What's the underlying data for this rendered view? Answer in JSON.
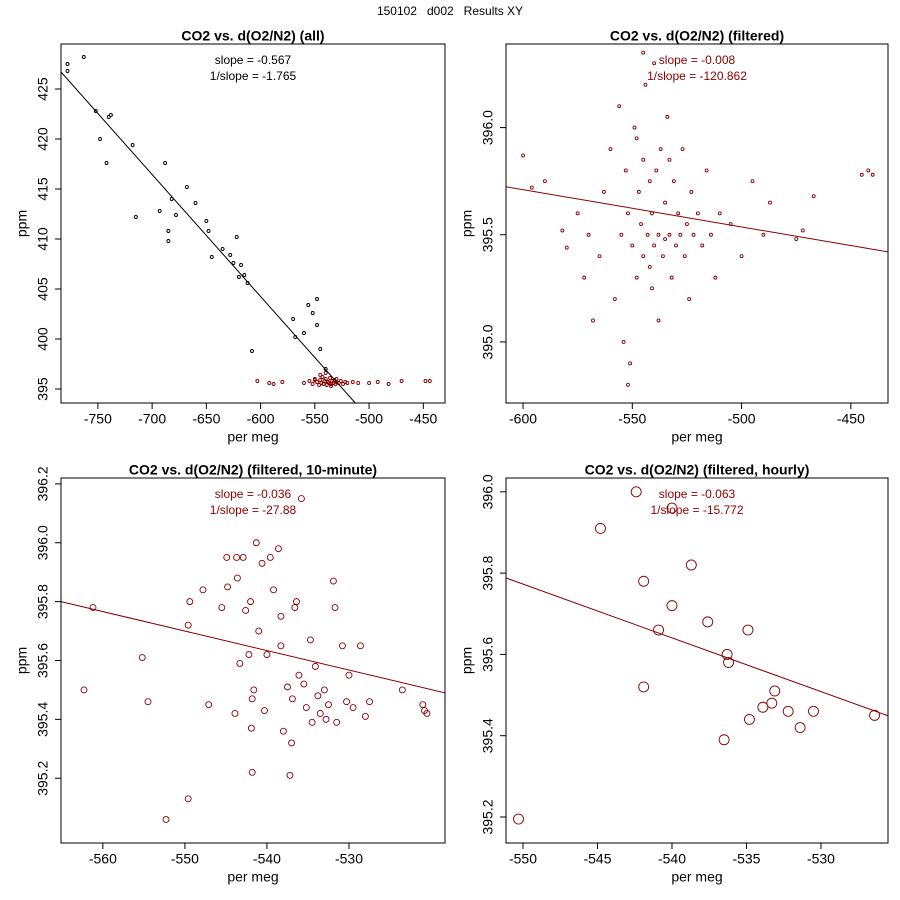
{
  "title": "150102   d002   Results XY",
  "chart_data": [
    {
      "type": "scatter",
      "title": "CO2 vs. d(O2/N2) (all)",
      "x_label": "per meg",
      "y_label": "ppm",
      "xlim": [
        -784,
        -430
      ],
      "ylim": [
        393.6,
        429.5
      ],
      "xticks": [
        -750,
        -700,
        -650,
        -600,
        -550,
        -500,
        -450
      ],
      "yticks": [
        395,
        400,
        405,
        410,
        415,
        420,
        425
      ],
      "annotations": [
        "slope = -0.567",
        "1/slope = -1.765"
      ],
      "annotation_color": "#000000",
      "fit_line": {
        "color": "#000000",
        "x": [
          -784,
          -512.7
        ],
        "values": [
          426.7,
          393.6
        ]
      },
      "series": [
        {
          "color": "#000000",
          "x": [
            -778,
            -778,
            -763,
            -752,
            -748,
            -742,
            -740,
            -738,
            -718,
            -715,
            -693,
            -688,
            -685,
            -685,
            -682,
            -678,
            -668,
            -660,
            -650,
            -648,
            -645,
            -635,
            -628,
            -625,
            -622,
            -620,
            -618,
            -615,
            -612,
            -608,
            -570,
            -568,
            -560,
            -556,
            -552,
            -548,
            -548,
            -545,
            -540
          ],
          "values": [
            427.5,
            426.8,
            428.2,
            422.8,
            420,
            417.6,
            422.2,
            422.4,
            419.4,
            412.2,
            412.8,
            417.6,
            410.8,
            409.8,
            414,
            412.4,
            415.2,
            413.6,
            411.8,
            410.8,
            408.2,
            409,
            408.4,
            407.6,
            410.2,
            406.2,
            407.4,
            406.4,
            405.6,
            398.8,
            402,
            400.2,
            400.6,
            403.4,
            402.6,
            401.4,
            404,
            399,
            397
          ]
        },
        {
          "color": "#8b0000",
          "x": [
            -560,
            -555,
            -552,
            -550,
            -548,
            -546,
            -545,
            -544,
            -543,
            -542,
            -541,
            -540,
            -539,
            -538,
            -537,
            -536,
            -535,
            -534,
            -533,
            -532,
            -531,
            -530,
            -528,
            -526,
            -524,
            -522,
            -520,
            -545,
            -540,
            -535,
            -550,
            -530,
            -603,
            -592,
            -588,
            -580,
            -500,
            -492,
            -482,
            -470,
            -448,
            -444,
            -510,
            -515
          ],
          "values": [
            395.6,
            395.8,
            395.5,
            396.0,
            395.7,
            395.4,
            395.9,
            395.6,
            396.2,
            395.5,
            395.8,
            396.0,
            395.4,
            395.7,
            395.6,
            396.1,
            395.5,
            395.8,
            395.6,
            395.9,
            395.5,
            395.7,
            395.6,
            395.8,
            395.5,
            395.7,
            395.6,
            396.4,
            396.6,
            395.3,
            395.9,
            396.0,
            395.8,
            395.6,
            395.5,
            395.7,
            395.6,
            395.7,
            395.5,
            395.8,
            395.8,
            395.8,
            395.6,
            395.7
          ]
        }
      ]
    },
    {
      "type": "scatter",
      "title": "CO2 vs. d(O2/N2) (filtered)",
      "x_label": "per meg",
      "y_label": "ppm",
      "xlim": [
        -607.8,
        -433
      ],
      "ylim": [
        394.715,
        396.39
      ],
      "xticks": [
        -600,
        -550,
        -500,
        -450
      ],
      "yticks": [
        {
          "value": 395,
          "label": "395.0"
        },
        395.5,
        {
          "value": 396,
          "label": "396.0"
        }
      ],
      "annotations": [
        "slope = -0.008",
        "1/slope = -120.862"
      ],
      "annotation_color": "#8b0000",
      "fit_line": {
        "color": "#8b0000",
        "x": [
          -607.8,
          -433
        ],
        "values": [
          395.724,
          395.42
        ]
      },
      "series": [
        {
          "color": "#8b0000",
          "x": [
            -600,
            -596,
            -590,
            -582,
            -580,
            -575,
            -572,
            -570,
            -568,
            -565,
            -563,
            -560,
            -558,
            -556,
            -555,
            -554,
            -553,
            -552,
            -551,
            -550,
            -549,
            -548,
            -547,
            -546,
            -545,
            -545,
            -544,
            -543,
            -542,
            -542,
            -541,
            -540,
            -540,
            -539,
            -538,
            -538,
            -537,
            -536,
            -535,
            -535,
            -534,
            -533,
            -532,
            -531,
            -530,
            -529,
            -528,
            -527,
            -526,
            -525,
            -524,
            -523,
            -522,
            -520,
            -518,
            -516,
            -514,
            -512,
            -510,
            -505,
            -500,
            -495,
            -490,
            -487,
            -475,
            -472,
            -467,
            -445,
            -442,
            -440,
            -552,
            -545,
            -548,
            -533,
            -541
          ],
          "values": [
            395.87,
            395.72,
            395.75,
            395.52,
            395.44,
            395.6,
            395.3,
            395.5,
            395.1,
            395.4,
            395.7,
            395.9,
            395.2,
            396.1,
            395.5,
            395.0,
            395.8,
            395.6,
            394.9,
            395.45,
            396.0,
            395.3,
            395.7,
            395.55,
            395.85,
            395.4,
            396.2,
            395.5,
            395.75,
            395.35,
            395.6,
            396.3,
            395.45,
            395.8,
            395.5,
            395.1,
            395.9,
            395.4,
            395.65,
            395.48,
            396.05,
            395.5,
            395.3,
            395.75,
            395.45,
            395.6,
            395.5,
            395.9,
            395.4,
            395.55,
            395.2,
            395.7,
            395.5,
            395.6,
            395.45,
            395.8,
            395.5,
            395.3,
            395.6,
            395.55,
            395.4,
            395.75,
            395.5,
            395.65,
            395.48,
            395.52,
            395.68,
            395.78,
            395.8,
            395.78,
            394.8,
            396.35,
            395.95,
            395.85,
            395.25
          ]
        }
      ]
    },
    {
      "type": "scatter",
      "title": "CO2 vs. d(O2/N2) (filtered, 10-minute)",
      "x_label": "per meg",
      "y_label": "ppm",
      "xlim": [
        -565.1,
        -518.3
      ],
      "ylim": [
        394.98,
        396.22
      ],
      "xticks": [
        -560,
        -550,
        -540,
        -530
      ],
      "yticks": [
        395.2,
        395.4,
        395.6,
        395.8,
        {
          "value": 396,
          "label": "396.0"
        },
        396.2
      ],
      "annotations": [
        "slope = -0.036",
        "1/slope = -27.88"
      ],
      "annotation_color": "#8b0000",
      "fit_line": {
        "color": "#8b0000",
        "x": [
          -565.1,
          -518.3
        ],
        "values": [
          395.8,
          395.49
        ]
      },
      "series": [
        {
          "color": "#8b0000",
          "x": [
            -562.3,
            -561.2,
            -555.2,
            -554.5,
            -552.3,
            -549.6,
            -549.4,
            -549.6,
            -547.8,
            -547.1,
            -545.5,
            -544.9,
            -544.8,
            -543.9,
            -543.7,
            -543.6,
            -543.3,
            -542.9,
            -542.6,
            -542.2,
            -542.0,
            -541.9,
            -541.8,
            -541.8,
            -541.6,
            -541.3,
            -541.0,
            -540.6,
            -540.3,
            -540.0,
            -539.6,
            -539.2,
            -538.6,
            -538.3,
            -538.3,
            -538.0,
            -537.5,
            -537.2,
            -537.0,
            -536.9,
            -536.6,
            -536.4,
            -536.1,
            -535.8,
            -535.5,
            -535.2,
            -534.7,
            -534.5,
            -534.1,
            -533.8,
            -533.5,
            -533.0,
            -532.8,
            -532.5,
            -531.9,
            -531.7,
            -531.5,
            -530.8,
            -530.3,
            -530.0,
            -529.5,
            -528.6,
            -528.0,
            -527.5,
            -523.5,
            -521.0,
            -520.8,
            -520.5
          ],
          "values": [
            395.5,
            395.78,
            395.61,
            395.46,
            395.06,
            395.13,
            395.8,
            395.72,
            395.84,
            395.45,
            395.78,
            395.95,
            395.85,
            395.42,
            395.95,
            395.88,
            395.59,
            395.95,
            395.77,
            395.62,
            395.8,
            395.37,
            395.22,
            395.47,
            395.5,
            396.0,
            395.7,
            395.93,
            395.43,
            395.62,
            395.95,
            395.84,
            395.98,
            395.75,
            395.65,
            395.36,
            395.51,
            395.21,
            395.32,
            395.47,
            395.78,
            395.8,
            395.55,
            396.15,
            395.52,
            395.44,
            395.67,
            395.39,
            395.58,
            395.48,
            395.42,
            395.5,
            395.4,
            395.45,
            395.87,
            395.78,
            395.39,
            395.65,
            395.46,
            395.55,
            395.44,
            395.65,
            395.41,
            395.46,
            395.5,
            395.45,
            395.43,
            395.42
          ]
        }
      ]
    },
    {
      "type": "scatter",
      "title": "CO2 vs. d(O2/N2) (filtered, hourly)",
      "x_label": "per meg",
      "y_label": "ppm",
      "xlim": [
        -551.14,
        -525.5
      ],
      "ylim": [
        395.136,
        396.034
      ],
      "xticks": [
        -550,
        -545,
        -540,
        -535,
        -530
      ],
      "yticks": [
        395.2,
        395.4,
        395.6,
        395.8,
        {
          "value": 396,
          "label": "396.0"
        }
      ],
      "annotations": [
        "slope = -0.063",
        "1/slope = -15.772"
      ],
      "annotation_color": "#8b0000",
      "fit_line": {
        "color": "#8b0000",
        "x": [
          -551.14,
          -525.5
        ],
        "values": [
          395.788,
          395.449
        ]
      },
      "series": [
        {
          "color": "#8b0000",
          "x": [
            -550.3,
            -544.8,
            -542.4,
            -541.9,
            -540.9,
            -540,
            -540,
            -541.9,
            -538.7,
            -537.6,
            -536.3,
            -536.2,
            -536.5,
            -534.9,
            -534.8,
            -533.9,
            -533.1,
            -533.3,
            -532.2,
            -531.4,
            -530.5,
            -526.4
          ],
          "values": [
            395.195,
            395.91,
            396.0,
            395.78,
            395.66,
            395.96,
            395.72,
            395.52,
            395.82,
            395.68,
            395.6,
            395.58,
            395.39,
            395.66,
            395.44,
            395.47,
            395.51,
            395.48,
            395.46,
            395.42,
            395.46,
            395.45
          ]
        }
      ]
    }
  ]
}
